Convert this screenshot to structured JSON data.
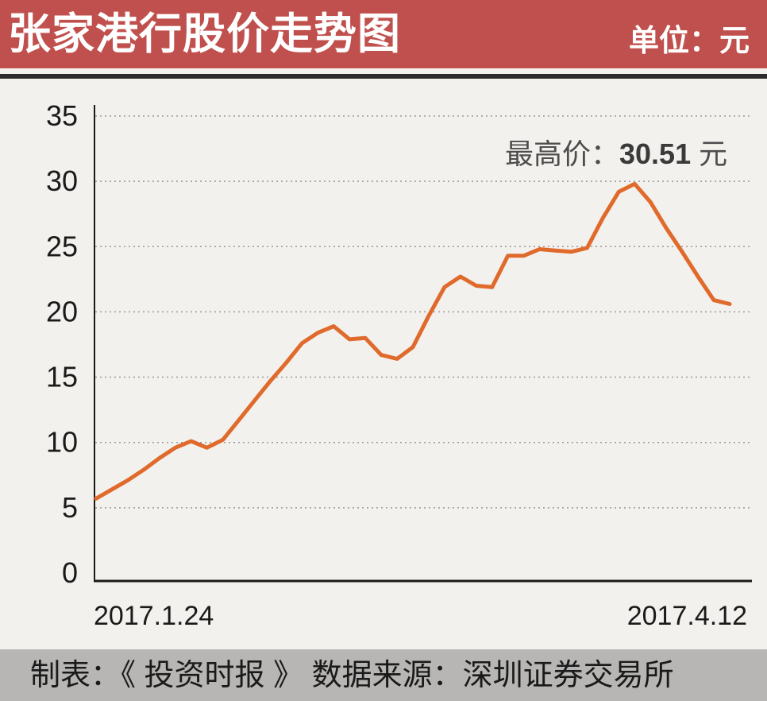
{
  "header": {
    "title": "张家港行股价走势图",
    "unit": "单位：元"
  },
  "annotation": {
    "label": "最高价：",
    "value": "30.51",
    "unit": " 元"
  },
  "footer": {
    "text": "制表：《 投资时报 》 数据来源：深圳证券交易所"
  },
  "colors": {
    "header_bg": "#c0504d",
    "line": "#e06a2b",
    "footer_bg": "#b7b6b4"
  },
  "chart_data": {
    "type": "line",
    "title": "张家港行股价走势图",
    "ylim": [
      0,
      35
    ],
    "yticks": [
      "0",
      "5",
      "10",
      "15",
      "20",
      "25",
      "30",
      "35"
    ],
    "x_labels": [
      "2017.1.24",
      "2017.4.12"
    ],
    "grid": "horizontal dotted",
    "series": [
      {
        "values": [
          5.7,
          6.4,
          7.1,
          7.9,
          8.8,
          9.6,
          10.1,
          9.6,
          10.2,
          11.7,
          13.2,
          14.7,
          16.1,
          17.6,
          18.4,
          18.9,
          17.9,
          18.0,
          16.7,
          16.4,
          17.3,
          19.7,
          21.9,
          22.7,
          22.0,
          21.9,
          24.3,
          24.3,
          24.8,
          24.7,
          24.6,
          24.9,
          27.2,
          29.2,
          29.8,
          28.4,
          26.4,
          24.6,
          22.7,
          20.9,
          20.6
        ]
      }
    ]
  }
}
